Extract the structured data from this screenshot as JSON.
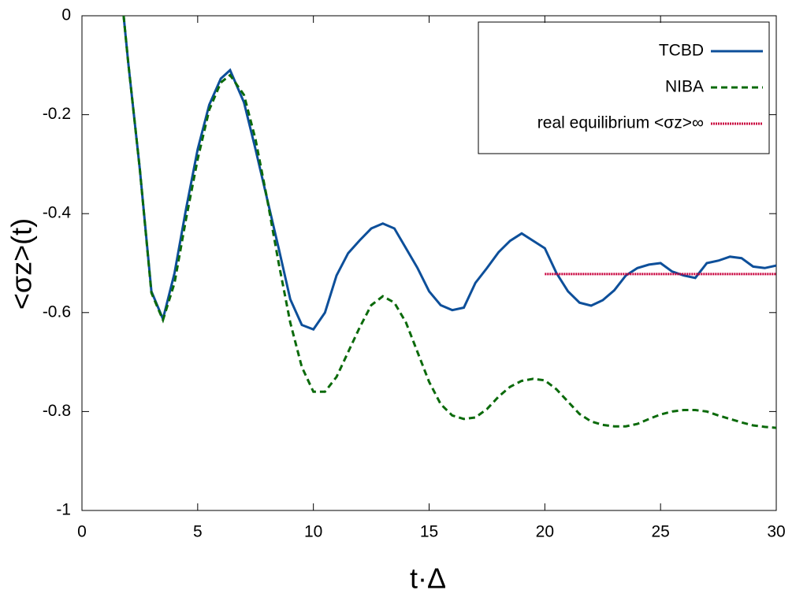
{
  "chart_data": {
    "type": "line",
    "x_label": "t·Δ",
    "y_label": "<σz>(t)",
    "xlim": [
      0,
      30
    ],
    "xticks": [
      0,
      5,
      10,
      15,
      20,
      25,
      30
    ],
    "ylim": [
      -1,
      0
    ],
    "yticks": [
      -1,
      -0.8,
      -0.6,
      -0.4,
      -0.2,
      0
    ],
    "grid": false,
    "legend": "top right",
    "series": [
      {
        "name": "TCBD",
        "color": "#0d4f9a",
        "style": "solid",
        "x": [
          1.8,
          2,
          2.5,
          3,
          3.5,
          4,
          4.5,
          5,
          5.5,
          6,
          6.4,
          7,
          7.5,
          8,
          8.5,
          9,
          9.5,
          10,
          10.5,
          11,
          11.5,
          12,
          12.5,
          13,
          13.5,
          14,
          14.5,
          15,
          15.5,
          16,
          16.5,
          17,
          17.5,
          18,
          18.5,
          19,
          19.5,
          20,
          20.5,
          21,
          21.5,
          22,
          22.5,
          23,
          23.5,
          24,
          24.5,
          25,
          25.5,
          26,
          26.5,
          27,
          27.5,
          28,
          28.5,
          29,
          29.5,
          30
        ],
        "values": [
          0,
          -0.095,
          -0.31,
          -0.557,
          -0.613,
          -0.52,
          -0.39,
          -0.27,
          -0.18,
          -0.127,
          -0.11,
          -0.175,
          -0.27,
          -0.37,
          -0.47,
          -0.573,
          -0.625,
          -0.634,
          -0.6,
          -0.525,
          -0.48,
          -0.454,
          -0.43,
          -0.42,
          -0.43,
          -0.47,
          -0.51,
          -0.557,
          -0.585,
          -0.595,
          -0.59,
          -0.54,
          -0.51,
          -0.478,
          -0.455,
          -0.44,
          -0.455,
          -0.47,
          -0.52,
          -0.557,
          -0.58,
          -0.586,
          -0.575,
          -0.555,
          -0.525,
          -0.51,
          -0.503,
          -0.5,
          -0.517,
          -0.525,
          -0.53,
          -0.5,
          -0.495,
          -0.487,
          -0.49,
          -0.507,
          -0.51,
          -0.505
        ]
      },
      {
        "name": "NIBA",
        "color": "#0b6a0b",
        "style": "dashed",
        "x": [
          1.8,
          2,
          2.5,
          3,
          3.5,
          4,
          4.5,
          5,
          5.5,
          6,
          6.4,
          7,
          7.5,
          8,
          8.5,
          9,
          9.5,
          10,
          10.5,
          11,
          11.5,
          12,
          12.5,
          13,
          13.5,
          14,
          14.5,
          15,
          15.5,
          16,
          16.5,
          17,
          17.5,
          18,
          18.5,
          19,
          19.5,
          20,
          20.5,
          21,
          21.5,
          22,
          22.5,
          23,
          23.5,
          24,
          24.5,
          25,
          25.5,
          26,
          26.5,
          27,
          27.5,
          28,
          28.5,
          29,
          29.5,
          30
        ],
        "values": [
          0,
          -0.095,
          -0.31,
          -0.56,
          -0.615,
          -0.54,
          -0.41,
          -0.29,
          -0.19,
          -0.135,
          -0.12,
          -0.16,
          -0.25,
          -0.37,
          -0.5,
          -0.62,
          -0.71,
          -0.76,
          -0.76,
          -0.73,
          -0.68,
          -0.63,
          -0.585,
          -0.567,
          -0.58,
          -0.62,
          -0.68,
          -0.74,
          -0.785,
          -0.808,
          -0.815,
          -0.812,
          -0.795,
          -0.77,
          -0.75,
          -0.738,
          -0.734,
          -0.737,
          -0.755,
          -0.78,
          -0.805,
          -0.82,
          -0.827,
          -0.83,
          -0.83,
          -0.825,
          -0.815,
          -0.806,
          -0.8,
          -0.797,
          -0.797,
          -0.8,
          -0.808,
          -0.815,
          -0.822,
          -0.828,
          -0.831,
          -0.833
        ]
      },
      {
        "name": "real equilibrium <σz>∞",
        "color": "#c8003c",
        "style": "dotted",
        "x": [
          20,
          30
        ],
        "values": [
          -0.522,
          -0.522
        ]
      }
    ]
  }
}
